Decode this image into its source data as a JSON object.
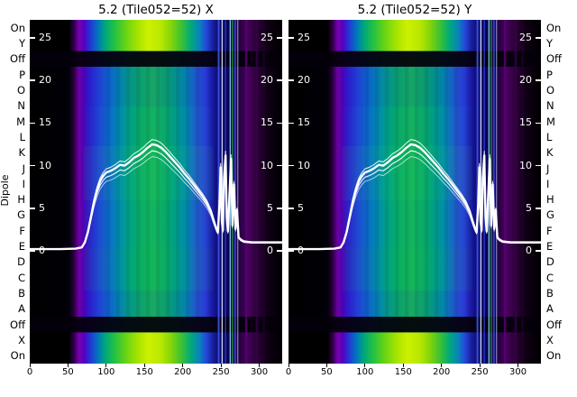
{
  "panels": [
    {
      "title": "5.2 (Tile052=52) X"
    },
    {
      "title": "5.2 (Tile052=52) Y"
    }
  ],
  "y_axis": {
    "label": "Dipole",
    "ticks": [
      "25",
      "20",
      "15",
      "10",
      "5",
      "0"
    ],
    "tick_values": [
      25,
      20,
      15,
      10,
      5,
      0
    ]
  },
  "x_axis": {
    "ticks": [
      "0",
      "50",
      "100",
      "150",
      "200",
      "250",
      "300"
    ],
    "tick_values": [
      0,
      50,
      100,
      150,
      200,
      250,
      300
    ]
  },
  "rows": [
    {
      "label": "On",
      "band": "bright"
    },
    {
      "label": "Y",
      "band": "bright"
    },
    {
      "label": "Off",
      "band": "off"
    },
    {
      "label": "P",
      "band": "mid"
    },
    {
      "label": "O",
      "band": "mid"
    },
    {
      "label": "N",
      "band": "mid"
    },
    {
      "label": "M",
      "band": "mid"
    },
    {
      "label": "L",
      "band": "mid"
    },
    {
      "label": "K",
      "band": "mid"
    },
    {
      "label": "J",
      "band": "mid"
    },
    {
      "label": "I",
      "band": "mid"
    },
    {
      "label": "H",
      "band": "mid"
    },
    {
      "label": "G",
      "band": "mid"
    },
    {
      "label": "F",
      "band": "mid"
    },
    {
      "label": "E",
      "band": "mid"
    },
    {
      "label": "D",
      "band": "mid"
    },
    {
      "label": "C",
      "band": "mid"
    },
    {
      "label": "B",
      "band": "mid"
    },
    {
      "label": "A",
      "band": "mid"
    },
    {
      "label": "Off",
      "band": "off"
    },
    {
      "label": "X",
      "band": "bright"
    },
    {
      "label": "On",
      "band": "bright"
    }
  ],
  "chart_data": {
    "type": "heatmap",
    "subtype": "heatmap with overlaid white line traces, two panels (X and Y polarization)",
    "panel_titles": [
      "5.2 (Tile052=52) X",
      "5.2 (Tile052=52) Y"
    ],
    "x_range": [
      0,
      330
    ],
    "value_range": [
      0,
      25
    ],
    "y_tick_values": [
      0,
      5,
      10,
      15,
      20,
      25
    ],
    "x_tick_values": [
      0,
      50,
      100,
      150,
      200,
      250,
      300
    ],
    "row_categories": [
      "On",
      "Y",
      "Off",
      "P",
      "O",
      "N",
      "M",
      "L",
      "K",
      "J",
      "I",
      "H",
      "G",
      "F",
      "E",
      "D",
      "C",
      "B",
      "A",
      "Off",
      "X",
      "On"
    ],
    "row_axis_label": "Dipole",
    "colormap": "black-purple-blue-teal-green-yellow spectral",
    "n_overlapping_traces": 4,
    "trace": {
      "description": "white power trace (same shape both panels): flat ~0 to x=70, steep rise to ~9 by x=100, broad peak ~12.5 at x=160, decline to ~2 by x=245, narrow spikes to ~11 between x=248-272, flat ~1 after x=276",
      "x": [
        0,
        20,
        40,
        60,
        68,
        72,
        76,
        80,
        84,
        88,
        92,
        96,
        100,
        106,
        112,
        118,
        124,
        130,
        136,
        142,
        148,
        154,
        160,
        166,
        172,
        178,
        184,
        190,
        196,
        202,
        208,
        214,
        220,
        226,
        232,
        237,
        241,
        244,
        246,
        248,
        249.5,
        251,
        252.5,
        254,
        256,
        257.5,
        259,
        261,
        263,
        265,
        267,
        269,
        271,
        273,
        276,
        280,
        290,
        300,
        315,
        330
      ],
      "v": [
        0.2,
        0.2,
        0.2,
        0.25,
        0.4,
        1.0,
        2.2,
        4.0,
        5.8,
        7.2,
        8.2,
        8.8,
        9.2,
        9.4,
        9.7,
        10.1,
        10.0,
        10.4,
        10.9,
        11.2,
        11.6,
        12.1,
        12.5,
        12.4,
        12.1,
        11.6,
        11.0,
        10.4,
        9.8,
        9.1,
        8.5,
        7.8,
        7.1,
        6.4,
        5.6,
        4.6,
        3.4,
        2.6,
        2.2,
        5.5,
        9.8,
        3.5,
        2.4,
        8.5,
        11.2,
        4.0,
        2.3,
        6.5,
        10.8,
        3.0,
        7.8,
        2.6,
        4.8,
        1.6,
        1.3,
        1.1,
        1.0,
        1.0,
        1.0,
        1.0
      ]
    },
    "gradients": {
      "mid": [
        [
          0,
          "#000000"
        ],
        [
          0.155,
          "#020008"
        ],
        [
          0.175,
          "#2a0040"
        ],
        [
          0.195,
          "#6e00a6"
        ],
        [
          0.215,
          "#4a00b4"
        ],
        [
          0.24,
          "#2a20cc"
        ],
        [
          0.275,
          "#2144d2"
        ],
        [
          0.31,
          "#0e64cc"
        ],
        [
          0.35,
          "#0087b2"
        ],
        [
          0.39,
          "#00a086"
        ],
        [
          0.44,
          "#0aac62"
        ],
        [
          0.49,
          "#16b45a"
        ],
        [
          0.54,
          "#08a868"
        ],
        [
          0.58,
          "#009c88"
        ],
        [
          0.62,
          "#0288ae"
        ],
        [
          0.66,
          "#2158cc"
        ],
        [
          0.695,
          "#2a3ed4"
        ],
        [
          0.72,
          "#1a1ca6"
        ],
        [
          0.75,
          "#0e0870"
        ],
        [
          0.79,
          "#0a0452"
        ],
        [
          0.83,
          "#240140"
        ],
        [
          0.865,
          "#480260"
        ],
        [
          0.9,
          "#2c0136"
        ],
        [
          0.94,
          "#100016"
        ],
        [
          1,
          "#000000"
        ]
      ],
      "bright": [
        [
          0,
          "#000000"
        ],
        [
          0.155,
          "#000000"
        ],
        [
          0.175,
          "#30004a"
        ],
        [
          0.195,
          "#7a00b0"
        ],
        [
          0.215,
          "#5500c0"
        ],
        [
          0.24,
          "#2238d6"
        ],
        [
          0.27,
          "#0077bb"
        ],
        [
          0.3,
          "#00a878"
        ],
        [
          0.335,
          "#22c044"
        ],
        [
          0.38,
          "#66d414"
        ],
        [
          0.43,
          "#a8e400"
        ],
        [
          0.47,
          "#cdf000"
        ],
        [
          0.52,
          "#b8e800"
        ],
        [
          0.56,
          "#84d40a"
        ],
        [
          0.6,
          "#3cc232"
        ],
        [
          0.64,
          "#00a87e"
        ],
        [
          0.675,
          "#0b7ec0"
        ],
        [
          0.7,
          "#2446d8"
        ],
        [
          0.725,
          "#18209e"
        ],
        [
          0.75,
          "#0d0a6a"
        ],
        [
          0.79,
          "#0a0450"
        ],
        [
          0.83,
          "#26013e"
        ],
        [
          0.86,
          "#44015c"
        ],
        [
          0.9,
          "#2a0134"
        ],
        [
          0.94,
          "#100014"
        ],
        [
          1,
          "#000000"
        ]
      ]
    },
    "bright_lines": [
      {
        "x": 247,
        "color": "#3c55e8",
        "w": 2,
        "o": 0.9
      },
      {
        "x": 251.5,
        "color": "#cdd8ff",
        "w": 1.4,
        "o": 0.95
      },
      {
        "x": 256,
        "color": "#2a3ed0",
        "w": 1.5,
        "o": 0.8
      },
      {
        "x": 262,
        "color": "#9fe8ff",
        "w": 1.2,
        "o": 0.9
      },
      {
        "x": 265,
        "color": "#28c04a",
        "w": 1.2,
        "o": 0.85
      },
      {
        "x": 268.5,
        "color": "#3746d6",
        "w": 2,
        "o": 0.85
      },
      {
        "x": 272,
        "color": "#b9c8ff",
        "w": 1,
        "o": 0.8
      },
      {
        "x": 283,
        "color": "#5a0170",
        "w": 2.5,
        "o": 0.8
      },
      {
        "x": 297,
        "color": "#38014a",
        "w": 3,
        "o": 0.7
      },
      {
        "x": 306,
        "color": "#22012e",
        "w": 3,
        "o": 0.6
      }
    ]
  }
}
